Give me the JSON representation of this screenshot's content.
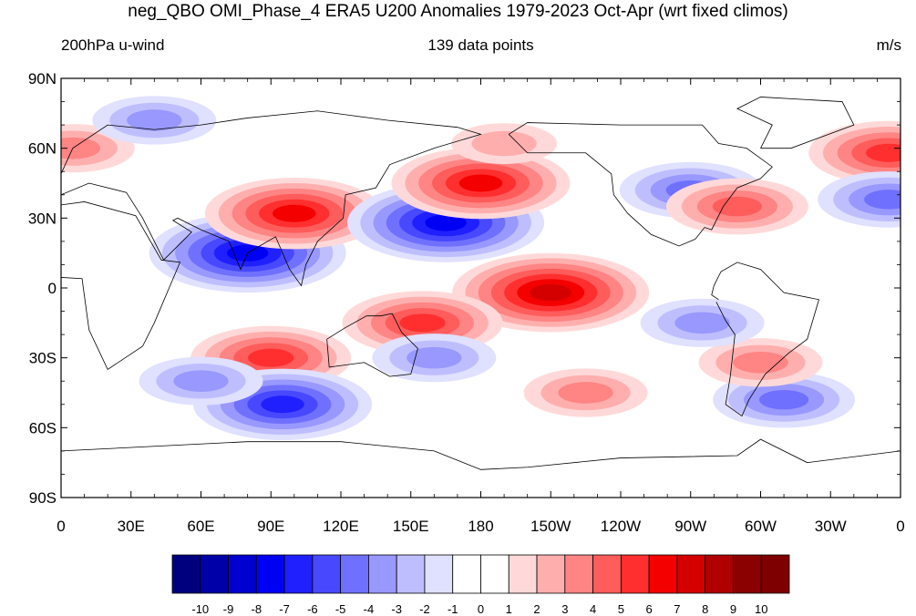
{
  "title": "neg_QBO OMI_Phase_4 ERA5 U200 Anomalies 1979-2023 Oct-Apr (wrt fixed climos)",
  "subtitle_left": "200hPa u-wind",
  "subtitle_center": "139 data points",
  "subtitle_right": "m/s",
  "axes": {
    "lat_labels": [
      "90N",
      "60N",
      "30N",
      "0",
      "30S",
      "60S",
      "90S"
    ],
    "lon_labels": [
      "0",
      "30E",
      "60E",
      "90E",
      "120E",
      "150E",
      "180",
      "150W",
      "120W",
      "90W",
      "60W",
      "30W",
      "0"
    ]
  },
  "colorbar": {
    "labels": [
      "-10",
      "-9",
      "-8",
      "-7",
      "-6",
      "-5",
      "-4",
      "-3",
      "-2",
      "-1",
      "0",
      "1",
      "2",
      "3",
      "4",
      "5",
      "6",
      "7",
      "8",
      "9",
      "10"
    ],
    "colors": [
      "#00007f",
      "#0000a8",
      "#0000d0",
      "#0000f5",
      "#2020ff",
      "#4848ff",
      "#7070ff",
      "#9898ff",
      "#bebeff",
      "#e0e0ff",
      "#ffffff",
      "#ffffff",
      "#ffd9d9",
      "#ffaeae",
      "#ff8484",
      "#ff5c5c",
      "#ff2f2f",
      "#f50000",
      "#d40000",
      "#b00000",
      "#8b0000",
      "#7f0000"
    ]
  },
  "chart_data": {
    "type": "heatmap",
    "variable": "200hPa u-wind anomaly",
    "units": "m/s",
    "lon_range": [
      0,
      360
    ],
    "lat_range": [
      -90,
      90
    ],
    "levels": [
      -10,
      -9,
      -8,
      -7,
      -6,
      -5,
      -4,
      -3,
      -2,
      -1,
      0,
      1,
      2,
      3,
      4,
      5,
      6,
      7,
      8,
      9,
      10
    ],
    "anomaly_features": [
      {
        "lon": 80,
        "lat": 15,
        "value": -7
      },
      {
        "lon": 100,
        "lat": 32,
        "value": 6
      },
      {
        "lon": 165,
        "lat": 28,
        "value": -7
      },
      {
        "lon": 180,
        "lat": 45,
        "value": 6
      },
      {
        "lon": 210,
        "lat": -2,
        "value": 7
      },
      {
        "lon": 155,
        "lat": -15,
        "value": 5
      },
      {
        "lon": 90,
        "lat": -30,
        "value": 5
      },
      {
        "lon": 95,
        "lat": -50,
        "value": -6
      },
      {
        "lon": 60,
        "lat": -40,
        "value": -3
      },
      {
        "lon": 270,
        "lat": 42,
        "value": -4
      },
      {
        "lon": 290,
        "lat": 35,
        "value": 4
      },
      {
        "lon": 355,
        "lat": 58,
        "value": 5
      },
      {
        "lon": 5,
        "lat": 60,
        "value": 3
      },
      {
        "lon": 355,
        "lat": 38,
        "value": -4
      },
      {
        "lon": 310,
        "lat": -48,
        "value": -4
      },
      {
        "lon": 300,
        "lat": -32,
        "value": 3
      },
      {
        "lon": 275,
        "lat": -15,
        "value": -3
      },
      {
        "lon": 225,
        "lat": -45,
        "value": 3
      },
      {
        "lon": 160,
        "lat": -30,
        "value": -3
      },
      {
        "lon": 190,
        "lat": 62,
        "value": 2
      },
      {
        "lon": 40,
        "lat": 72,
        "value": -3
      }
    ]
  }
}
